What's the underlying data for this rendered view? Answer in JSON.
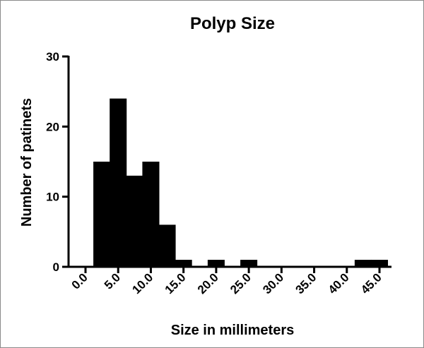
{
  "chart_data": {
    "type": "bar",
    "title": "Polyp Size",
    "xlabel": "Size in millimeters",
    "ylabel": "Number of patinets",
    "xlim": [
      0,
      45
    ],
    "ylim": [
      0,
      30
    ],
    "x_ticks": [
      "0.0",
      "5.0",
      "10.0",
      "15.0",
      "20.0",
      "25.0",
      "30.0",
      "35.0",
      "40.0",
      "45.0"
    ],
    "y_ticks": [
      "0",
      "10",
      "20",
      "30"
    ],
    "bar_width_units": 2.6,
    "x": [
      2.5,
      5,
      7.5,
      10,
      12.5,
      15,
      20,
      25,
      42.5,
      45
    ],
    "values": [
      15,
      24,
      13,
      15,
      6,
      1,
      1,
      1,
      1,
      1
    ],
    "bar_color": "#000000",
    "grid": false,
    "legend": "none"
  }
}
